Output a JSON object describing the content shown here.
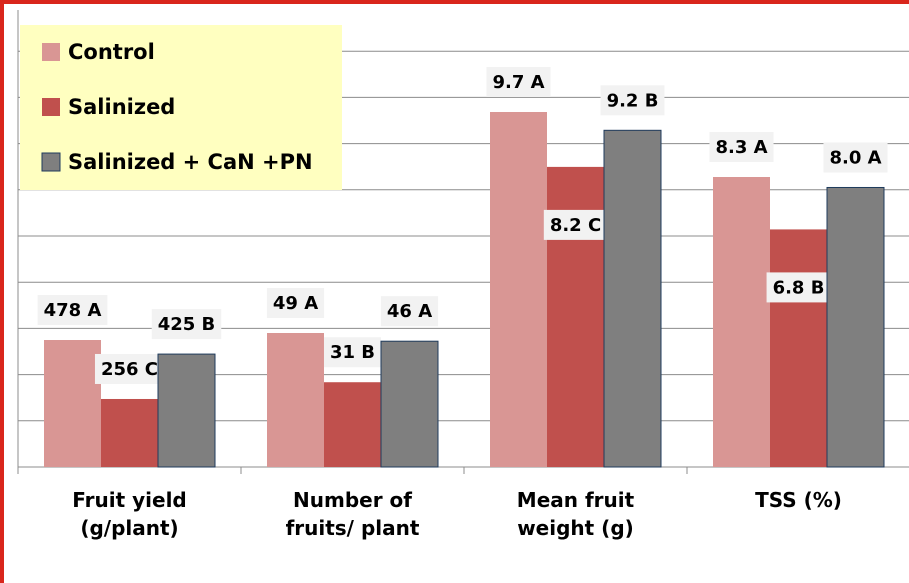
{
  "chart_data": {
    "type": "bar",
    "categories": [
      "Fruit yield (g/plant)",
      "Number of fruits/ plant",
      "Mean fruit weight (g)",
      "TSS (%)"
    ],
    "series": [
      {
        "name": "Control",
        "color": "#d99694",
        "values": [
          478,
          49,
          9.7,
          8.3
        ],
        "value_labels": [
          "478 A",
          "49 A",
          "9.7 A",
          "8.3 A"
        ]
      },
      {
        "name": "Salinized",
        "color": "#c0504d",
        "values": [
          256,
          31,
          8.2,
          6.8
        ],
        "value_labels": [
          "256 C",
          "31 B",
          "8.2 C",
          "6.8 B"
        ]
      },
      {
        "name": "Salinized + CaN +PN",
        "color": "#7f7f7f",
        "values": [
          425,
          46,
          9.2,
          8.0
        ],
        "value_labels": [
          "425 B",
          "46 A",
          "9.2 B",
          "8.0 A"
        ]
      }
    ],
    "grid": true,
    "legend": "top-left"
  }
}
